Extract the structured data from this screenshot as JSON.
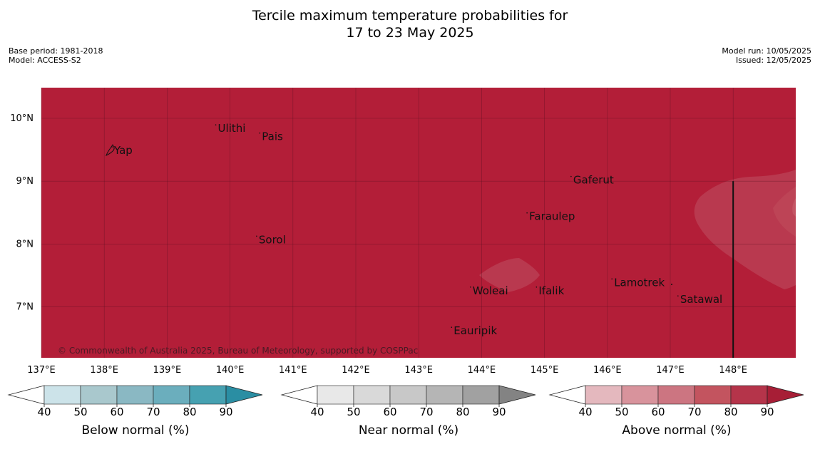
{
  "title": {
    "line1": "Tercile maximum temperature probabilities for",
    "line2": "17 to 23 May 2025"
  },
  "meta": {
    "base_period": "Base period: 1981-2018",
    "model": "Model: ACCESS-S2",
    "model_run": "Model run: 10/05/2025",
    "issued": "Issued: 12/05/2025"
  },
  "map": {
    "background_color": "#b31e38",
    "lighter_region_color": "#b9394f",
    "lon_ticks": [
      "137°E",
      "138°E",
      "139°E",
      "140°E",
      "141°E",
      "142°E",
      "143°E",
      "144°E",
      "145°E",
      "146°E",
      "147°E",
      "148°E"
    ],
    "lat_ticks": [
      "10°N",
      "9°N",
      "8°N",
      "7°N"
    ],
    "places": [
      {
        "name": "Yap",
        "lon": 138.1,
        "lat": 9.5
      },
      {
        "name": "Ulithi",
        "lon": 139.75,
        "lat": 9.85
      },
      {
        "name": "Pais",
        "lon": 140.45,
        "lat": 9.72
      },
      {
        "name": "Sorol",
        "lon": 140.4,
        "lat": 8.08
      },
      {
        "name": "Gaferut",
        "lon": 145.4,
        "lat": 9.03
      },
      {
        "name": "Faraulep",
        "lon": 144.7,
        "lat": 8.45
      },
      {
        "name": "Lamotrek",
        "lon": 146.05,
        "lat": 7.4
      },
      {
        "name": "Woleai",
        "lon": 143.8,
        "lat": 7.27
      },
      {
        "name": "Ifalik",
        "lon": 144.85,
        "lat": 7.27
      },
      {
        "name": "Satawal",
        "lon": 147.1,
        "lat": 7.13
      },
      {
        "name": "Eauripik",
        "lon": 143.5,
        "lat": 6.63
      }
    ],
    "copyright": "© Commonwealth of Australia 2025, Bureau of Meteorology, supported by COSPPac"
  },
  "colorbars": [
    {
      "id": "below",
      "title": "Below normal (%)",
      "ticks": [
        "40",
        "50",
        "60",
        "70",
        "80",
        "90"
      ],
      "colors": [
        "#cce3e9",
        "#a9c8cd",
        "#8ab8c3",
        "#6baebd",
        "#46a1b1",
        "#2a8ea3"
      ]
    },
    {
      "id": "near",
      "title": "Near normal (%)",
      "ticks": [
        "40",
        "50",
        "60",
        "70",
        "80",
        "90"
      ],
      "colors": [
        "#e8e8e8",
        "#d9d9d9",
        "#c8c8c8",
        "#b5b5b5",
        "#a1a1a1",
        "#838383"
      ]
    },
    {
      "id": "above",
      "title": "Above normal (%)",
      "ticks": [
        "40",
        "50",
        "60",
        "70",
        "80",
        "90"
      ],
      "colors": [
        "#e4b8be",
        "#d8939c",
        "#cc7581",
        "#c3545f",
        "#b5344a",
        "#a71e36"
      ]
    }
  ]
}
